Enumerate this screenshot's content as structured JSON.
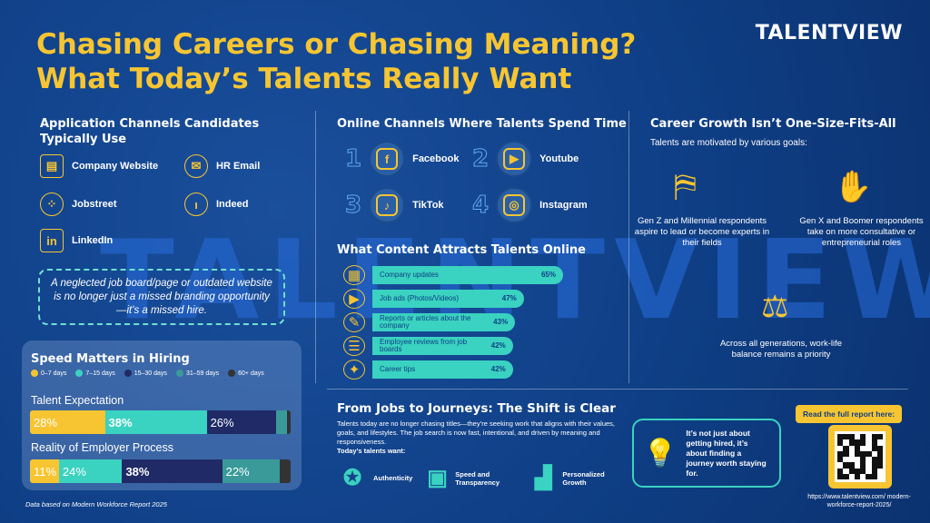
{
  "header": {
    "title_line1": "Chasing Careers or Chasing Meaning?",
    "title_line2": "What Today’s Talents Really Want",
    "brand": "TALENTVIEW",
    "watermark": "TALENTVIEW"
  },
  "application_channels": {
    "heading": "Application Channels Candidates Typically Use",
    "items": [
      {
        "label": "Company Website",
        "icon": "website-icon"
      },
      {
        "label": "HR Email",
        "icon": "email-icon"
      },
      {
        "label": "Jobstreet",
        "icon": "jobstreet-icon"
      },
      {
        "label": "Indeed",
        "icon": "indeed-icon"
      },
      {
        "label": "LinkedIn",
        "icon": "linkedin-icon"
      }
    ],
    "callout": "A neglected job board/page or outdated website is no longer just a missed branding opportunity—it's a missed hire."
  },
  "speed": {
    "heading": "Speed Matters in Hiring",
    "legend": [
      {
        "label": "0–7 days",
        "color": "#f7c531"
      },
      {
        "label": "7–15 days",
        "color": "#3ad2c0"
      },
      {
        "label": "15–30 days",
        "color": "#1f2a66"
      },
      {
        "label": "31–59 days",
        "color": "#3a9a9a"
      },
      {
        "label": "60+ days",
        "color": "#333333"
      }
    ],
    "expectation_label": "Talent Expectation",
    "reality_label": "Reality of Employer Process"
  },
  "chart_data": [
    {
      "type": "bar",
      "title": "Speed Matters in Hiring",
      "categories": [
        "Talent Expectation",
        "Reality of Employer Process"
      ],
      "series": [
        {
          "name": "0–7 days",
          "values": [
            28,
            11
          ]
        },
        {
          "name": "7–15 days",
          "values": [
            38,
            24
          ]
        },
        {
          "name": "15–30 days",
          "values": [
            26,
            38
          ]
        },
        {
          "name": "31–59 days",
          "values": [
            4,
            22
          ]
        },
        {
          "name": "60+ days",
          "values": [
            1,
            4
          ]
        }
      ],
      "value_labels": [
        [
          "28%",
          "38%",
          "26%",
          "",
          ""
        ],
        [
          "11%",
          "24%",
          "38%",
          "22%",
          ""
        ]
      ],
      "stacked": true,
      "orientation": "horizontal"
    },
    {
      "type": "bar",
      "title": "What Content Attracts Talents Online",
      "categories": [
        "Company updates",
        "Job ads (Photos/Videos)",
        "Reports or articles about the company",
        "Employee reviews from job boards",
        "Career tips"
      ],
      "values": [
        65,
        47,
        43,
        42,
        42
      ],
      "value_labels": [
        "65%",
        "47%",
        "43%",
        "42%",
        "42%"
      ],
      "orientation": "horizontal"
    }
  ],
  "online_channels": {
    "heading": "Online Channels Where Talents Spend Time",
    "items": [
      {
        "rank": "1",
        "label": "Facebook",
        "glyph": "f"
      },
      {
        "rank": "2",
        "label": "Youtube",
        "glyph": "▶"
      },
      {
        "rank": "3",
        "label": "TikTok",
        "glyph": "♪"
      },
      {
        "rank": "4",
        "label": "Instagram",
        "glyph": "◎"
      }
    ]
  },
  "content": {
    "heading": "What Content Attracts Talents Online",
    "icons": [
      "building-icon",
      "video-icon",
      "article-icon",
      "review-icon",
      "lightbulb-icon"
    ],
    "glyphs": [
      "▦",
      "▶",
      "✎",
      "☰",
      "✦"
    ]
  },
  "career_growth": {
    "heading": "Career Growth Isn’t One-Size-Fits-All",
    "subheading": "Talents are motivated by various goals:",
    "goals": [
      {
        "text": "Gen Z and Millennial respondents aspire to lead or become experts in their fields",
        "icon": "climbing-stairs-icon"
      },
      {
        "text": "Gen X and Boomer respondents take on more consultative or entrepreneurial roles",
        "icon": "handshake-icon"
      },
      {
        "text": "Across all generations, work-life balance remains a priority",
        "icon": "balance-icon"
      }
    ]
  },
  "journeys": {
    "heading": "From Jobs to Journeys: The Shift is Clear",
    "body": "Talents today are no longer chasing titles—they’re seeking work that aligns with their values, goals, and lifestyles. The job search is now fast, intentional, and driven by meaning and responsiveness.",
    "wants_label": "Today’s talents want:",
    "wants": [
      {
        "label": "Authenticity",
        "icon": "badge-icon"
      },
      {
        "label": "Speed and Transparency",
        "icon": "calendar-icon"
      },
      {
        "label": "Personalized Growth",
        "icon": "growth-icon"
      }
    ],
    "callout": "It’s not just about getting hired, it’s about finding a journey worth staying for."
  },
  "report": {
    "cta": "Read the full report here:",
    "url": "https://www.talentview.com/ modern-workforce-report-2025/"
  },
  "footer": {
    "source": "Data based on Modern Workforce Report 2025"
  }
}
